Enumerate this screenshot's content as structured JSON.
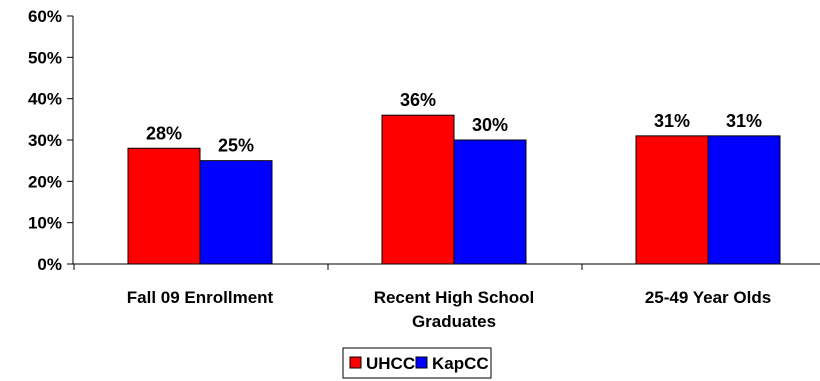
{
  "chart_data": {
    "type": "bar",
    "categories": [
      [
        "Fall 09 Enrollment"
      ],
      [
        "Recent High School",
        "Graduates"
      ],
      [
        "25-49 Year Olds"
      ]
    ],
    "series": [
      {
        "name": "UHCC",
        "color": "#ff0000",
        "values": [
          28,
          36,
          31
        ],
        "labels": [
          "28%",
          "36%",
          "31%"
        ]
      },
      {
        "name": "KapCC",
        "color": "#0000ff",
        "values": [
          25,
          30,
          31
        ],
        "labels": [
          "25%",
          "30%",
          "31%"
        ]
      }
    ],
    "ylim": [
      0,
      60
    ],
    "yticks": [
      0,
      10,
      20,
      30,
      40,
      50,
      60
    ],
    "ytick_labels": [
      "0%",
      "10%",
      "20%",
      "30%",
      "40%",
      "50%",
      "60%"
    ],
    "grid": false,
    "legend_position": "bottom-center"
  }
}
